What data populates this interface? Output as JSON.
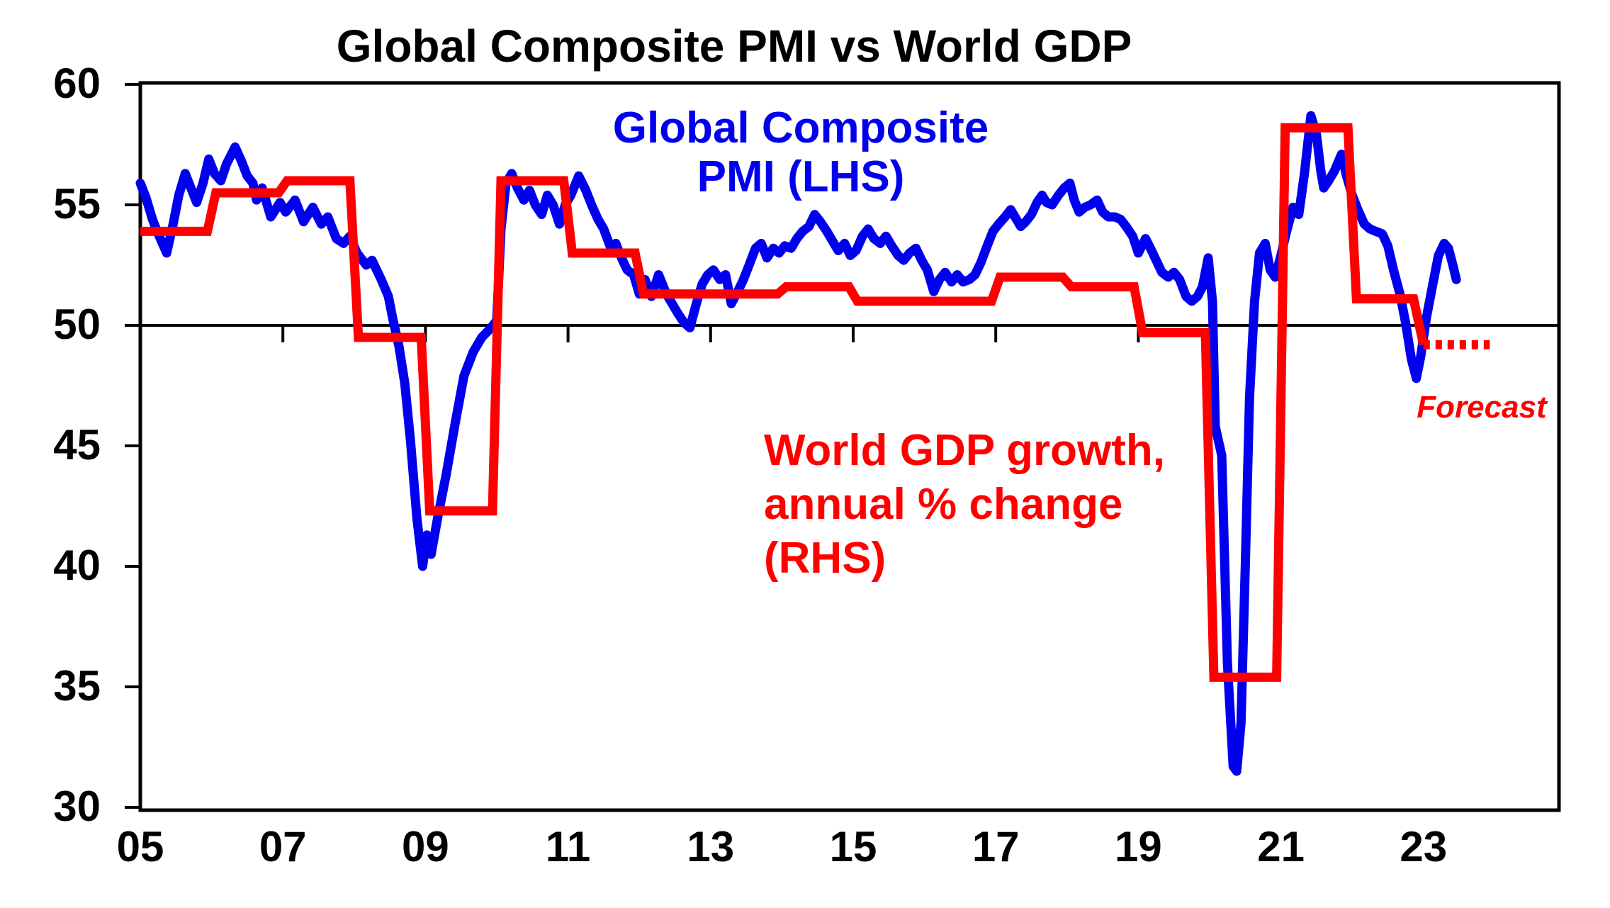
{
  "title": "Global Composite PMI vs World GDP",
  "colors": {
    "pmi_blue": "#0000EE",
    "gdp_red": "#FF0000",
    "axis_black": "#000000",
    "background": "#FFFFFF"
  },
  "annotations": {
    "pmi_label_line1": "Global Composite",
    "pmi_label_line2": "PMI (LHS)",
    "gdp_label_line1": "World GDP growth,",
    "gdp_label_line2": "annual % change",
    "gdp_label_line3": "(RHS)",
    "forecast_label": "Forecast"
  },
  "chart_data": {
    "type": "line",
    "title": "Global Composite PMI vs World GDP",
    "grid": "off",
    "x_axis": {
      "tick_labels": [
        "05",
        "07",
        "09",
        "11",
        "13",
        "15",
        "17",
        "19",
        "21",
        "23"
      ],
      "tick_years": [
        2005,
        2007,
        2009,
        2011,
        2013,
        2015,
        2017,
        2019,
        2021,
        2023
      ],
      "range": [
        2005,
        2024.9
      ],
      "label_position": "below-plot",
      "inner_tick_years_on_50_line": [
        2007,
        2009,
        2011,
        2013,
        2015,
        2017,
        2019,
        2021,
        2023
      ]
    },
    "y_axis_left": {
      "tick_labels": [
        "60",
        "55",
        "50",
        "45",
        "40",
        "35",
        "30"
      ],
      "tick_values": [
        60,
        55,
        50,
        45,
        40,
        35,
        30
      ],
      "range": [
        30,
        60
      ],
      "reference_line_value": 50
    },
    "y_axis_right": {
      "note": "RHS axis labels are not visible in the image; red series values below are read in LHS-equivalent units"
    },
    "series": [
      {
        "name": "Global Composite PMI (LHS)",
        "type": "line",
        "color": "#0000EE",
        "points": [
          [
            2005.0,
            55.9
          ],
          [
            2005.08,
            55.3
          ],
          [
            2005.17,
            54.4
          ],
          [
            2005.25,
            53.8
          ],
          [
            2005.37,
            53.0
          ],
          [
            2005.46,
            54.2
          ],
          [
            2005.54,
            55.4
          ],
          [
            2005.63,
            56.3
          ],
          [
            2005.71,
            55.7
          ],
          [
            2005.79,
            55.1
          ],
          [
            2005.88,
            55.9
          ],
          [
            2005.96,
            56.9
          ],
          [
            2006.04,
            56.3
          ],
          [
            2006.13,
            56.0
          ],
          [
            2006.21,
            56.7
          ],
          [
            2006.33,
            57.4
          ],
          [
            2006.42,
            56.8
          ],
          [
            2006.5,
            56.2
          ],
          [
            2006.58,
            55.9
          ],
          [
            2006.63,
            55.2
          ],
          [
            2006.71,
            55.7
          ],
          [
            2006.83,
            54.5
          ],
          [
            2006.96,
            55.1
          ],
          [
            2007.04,
            54.7
          ],
          [
            2007.17,
            55.2
          ],
          [
            2007.29,
            54.3
          ],
          [
            2007.42,
            54.9
          ],
          [
            2007.54,
            54.2
          ],
          [
            2007.63,
            54.5
          ],
          [
            2007.75,
            53.6
          ],
          [
            2007.85,
            53.4
          ],
          [
            2007.94,
            53.7
          ],
          [
            2008.04,
            53.0
          ],
          [
            2008.17,
            52.5
          ],
          [
            2008.25,
            52.7
          ],
          [
            2008.38,
            51.9
          ],
          [
            2008.48,
            51.2
          ],
          [
            2008.54,
            50.3
          ],
          [
            2008.63,
            49.1
          ],
          [
            2008.71,
            47.6
          ],
          [
            2008.79,
            45.2
          ],
          [
            2008.88,
            42.0
          ],
          [
            2008.96,
            40.0
          ],
          [
            2009.02,
            41.3
          ],
          [
            2009.08,
            40.5
          ],
          [
            2009.17,
            42.0
          ],
          [
            2009.29,
            43.8
          ],
          [
            2009.42,
            46.0
          ],
          [
            2009.54,
            47.9
          ],
          [
            2009.67,
            48.9
          ],
          [
            2009.79,
            49.5
          ],
          [
            2009.92,
            49.9
          ],
          [
            2010.0,
            50.2
          ],
          [
            2010.06,
            54.0
          ],
          [
            2010.13,
            55.9
          ],
          [
            2010.21,
            56.3
          ],
          [
            2010.29,
            55.7
          ],
          [
            2010.38,
            55.2
          ],
          [
            2010.46,
            55.6
          ],
          [
            2010.54,
            55.0
          ],
          [
            2010.63,
            54.6
          ],
          [
            2010.71,
            55.4
          ],
          [
            2010.79,
            55.0
          ],
          [
            2010.88,
            54.2
          ],
          [
            2010.96,
            55.0
          ],
          [
            2011.04,
            55.4
          ],
          [
            2011.15,
            56.2
          ],
          [
            2011.25,
            55.6
          ],
          [
            2011.33,
            55.0
          ],
          [
            2011.42,
            54.4
          ],
          [
            2011.5,
            54.0
          ],
          [
            2011.6,
            53.2
          ],
          [
            2011.67,
            53.4
          ],
          [
            2011.75,
            52.8
          ],
          [
            2011.83,
            52.3
          ],
          [
            2011.92,
            52.1
          ],
          [
            2012.0,
            51.3
          ],
          [
            2012.08,
            51.9
          ],
          [
            2012.17,
            51.2
          ],
          [
            2012.27,
            52.1
          ],
          [
            2012.38,
            51.3
          ],
          [
            2012.46,
            50.9
          ],
          [
            2012.54,
            50.5
          ],
          [
            2012.63,
            50.1
          ],
          [
            2012.71,
            49.9
          ],
          [
            2012.79,
            50.8
          ],
          [
            2012.88,
            51.7
          ],
          [
            2012.96,
            52.1
          ],
          [
            2013.04,
            52.3
          ],
          [
            2013.13,
            51.9
          ],
          [
            2013.21,
            52.1
          ],
          [
            2013.29,
            50.9
          ],
          [
            2013.38,
            51.4
          ],
          [
            2013.46,
            51.9
          ],
          [
            2013.54,
            52.5
          ],
          [
            2013.63,
            53.2
          ],
          [
            2013.71,
            53.4
          ],
          [
            2013.79,
            52.8
          ],
          [
            2013.88,
            53.2
          ],
          [
            2013.96,
            53.0
          ],
          [
            2014.04,
            53.3
          ],
          [
            2014.13,
            53.2
          ],
          [
            2014.21,
            53.6
          ],
          [
            2014.29,
            53.9
          ],
          [
            2014.38,
            54.1
          ],
          [
            2014.46,
            54.6
          ],
          [
            2014.54,
            54.3
          ],
          [
            2014.63,
            53.9
          ],
          [
            2014.71,
            53.5
          ],
          [
            2014.79,
            53.1
          ],
          [
            2014.88,
            53.4
          ],
          [
            2014.96,
            52.9
          ],
          [
            2015.04,
            53.1
          ],
          [
            2015.13,
            53.7
          ],
          [
            2015.21,
            54.0
          ],
          [
            2015.29,
            53.6
          ],
          [
            2015.38,
            53.4
          ],
          [
            2015.46,
            53.7
          ],
          [
            2015.54,
            53.3
          ],
          [
            2015.63,
            52.9
          ],
          [
            2015.71,
            52.7
          ],
          [
            2015.79,
            53.0
          ],
          [
            2015.88,
            53.2
          ],
          [
            2015.96,
            52.7
          ],
          [
            2016.04,
            52.3
          ],
          [
            2016.13,
            51.4
          ],
          [
            2016.21,
            51.9
          ],
          [
            2016.29,
            52.2
          ],
          [
            2016.38,
            51.8
          ],
          [
            2016.46,
            52.1
          ],
          [
            2016.54,
            51.8
          ],
          [
            2016.63,
            51.9
          ],
          [
            2016.71,
            52.1
          ],
          [
            2016.79,
            52.6
          ],
          [
            2016.88,
            53.3
          ],
          [
            2016.96,
            53.9
          ],
          [
            2017.04,
            54.2
          ],
          [
            2017.13,
            54.5
          ],
          [
            2017.21,
            54.8
          ],
          [
            2017.29,
            54.4
          ],
          [
            2017.35,
            54.1
          ],
          [
            2017.42,
            54.3
          ],
          [
            2017.5,
            54.6
          ],
          [
            2017.58,
            55.1
          ],
          [
            2017.65,
            55.4
          ],
          [
            2017.71,
            55.1
          ],
          [
            2017.79,
            55.0
          ],
          [
            2017.88,
            55.4
          ],
          [
            2017.96,
            55.7
          ],
          [
            2018.04,
            55.9
          ],
          [
            2018.1,
            55.2
          ],
          [
            2018.17,
            54.7
          ],
          [
            2018.25,
            54.9
          ],
          [
            2018.33,
            55.0
          ],
          [
            2018.42,
            55.2
          ],
          [
            2018.5,
            54.7
          ],
          [
            2018.58,
            54.5
          ],
          [
            2018.67,
            54.5
          ],
          [
            2018.75,
            54.4
          ],
          [
            2018.83,
            54.1
          ],
          [
            2018.92,
            53.7
          ],
          [
            2019.0,
            53.0
          ],
          [
            2019.1,
            53.6
          ],
          [
            2019.17,
            53.2
          ],
          [
            2019.25,
            52.7
          ],
          [
            2019.33,
            52.2
          ],
          [
            2019.42,
            52.0
          ],
          [
            2019.5,
            52.2
          ],
          [
            2019.58,
            51.9
          ],
          [
            2019.67,
            51.2
          ],
          [
            2019.75,
            51.0
          ],
          [
            2019.83,
            51.2
          ],
          [
            2019.9,
            51.6
          ],
          [
            2019.98,
            52.8
          ],
          [
            2020.04,
            51.0
          ],
          [
            2020.08,
            45.8
          ],
          [
            2020.17,
            44.6
          ],
          [
            2020.25,
            36.0
          ],
          [
            2020.33,
            31.7
          ],
          [
            2020.38,
            31.5
          ],
          [
            2020.44,
            33.5
          ],
          [
            2020.5,
            40.0
          ],
          [
            2020.56,
            47.0
          ],
          [
            2020.63,
            51.0
          ],
          [
            2020.7,
            53.0
          ],
          [
            2020.78,
            53.4
          ],
          [
            2020.85,
            52.3
          ],
          [
            2020.92,
            52.0
          ],
          [
            2021.0,
            52.9
          ],
          [
            2021.08,
            53.9
          ],
          [
            2021.17,
            54.9
          ],
          [
            2021.25,
            54.6
          ],
          [
            2021.33,
            56.3
          ],
          [
            2021.42,
            58.7
          ],
          [
            2021.5,
            57.9
          ],
          [
            2021.56,
            56.4
          ],
          [
            2021.6,
            55.7
          ],
          [
            2021.67,
            56.0
          ],
          [
            2021.75,
            56.4
          ],
          [
            2021.85,
            57.1
          ],
          [
            2021.92,
            56.2
          ],
          [
            2022.0,
            55.4
          ],
          [
            2022.08,
            54.8
          ],
          [
            2022.17,
            54.2
          ],
          [
            2022.25,
            54.0
          ],
          [
            2022.33,
            53.9
          ],
          [
            2022.42,
            53.8
          ],
          [
            2022.5,
            53.3
          ],
          [
            2022.58,
            52.3
          ],
          [
            2022.67,
            51.3
          ],
          [
            2022.75,
            50.1
          ],
          [
            2022.83,
            48.6
          ],
          [
            2022.9,
            47.8
          ],
          [
            2022.96,
            48.7
          ],
          [
            2023.04,
            50.3
          ],
          [
            2023.13,
            51.7
          ],
          [
            2023.21,
            52.9
          ],
          [
            2023.29,
            53.4
          ],
          [
            2023.35,
            53.2
          ],
          [
            2023.42,
            52.4
          ],
          [
            2023.46,
            51.9
          ]
        ]
      },
      {
        "name": "World GDP growth, annual % change (RHS)",
        "type": "step",
        "color": "#FF0000",
        "units": "LHS-equivalent (RHS axis not labelled in image)",
        "steps": [
          {
            "year": 2005,
            "value": 53.9
          },
          {
            "year": 2006,
            "value": 55.5
          },
          {
            "year": 2007,
            "value": 56.0
          },
          {
            "year": 2008,
            "value": 49.5
          },
          {
            "year": 2009,
            "value": 42.3
          },
          {
            "year": 2010,
            "value": 56.0
          },
          {
            "year": 2011,
            "value": 53.0
          },
          {
            "year": 2012,
            "value": 51.3
          },
          {
            "year": 2013,
            "value": 51.3
          },
          {
            "year": 2014,
            "value": 51.6
          },
          {
            "year": 2015,
            "value": 51.0
          },
          {
            "year": 2016,
            "value": 51.0
          },
          {
            "year": 2017,
            "value": 52.0
          },
          {
            "year": 2018,
            "value": 51.6
          },
          {
            "year": 2019,
            "value": 49.7
          },
          {
            "year": 2020,
            "value": 35.4
          },
          {
            "year": 2021,
            "value": 58.2
          },
          {
            "year": 2022,
            "value": 51.1
          }
        ],
        "forecast_step": {
          "year": 2023,
          "value": 49.2,
          "style": "dashed",
          "end_year": 2023.93
        }
      }
    ]
  }
}
